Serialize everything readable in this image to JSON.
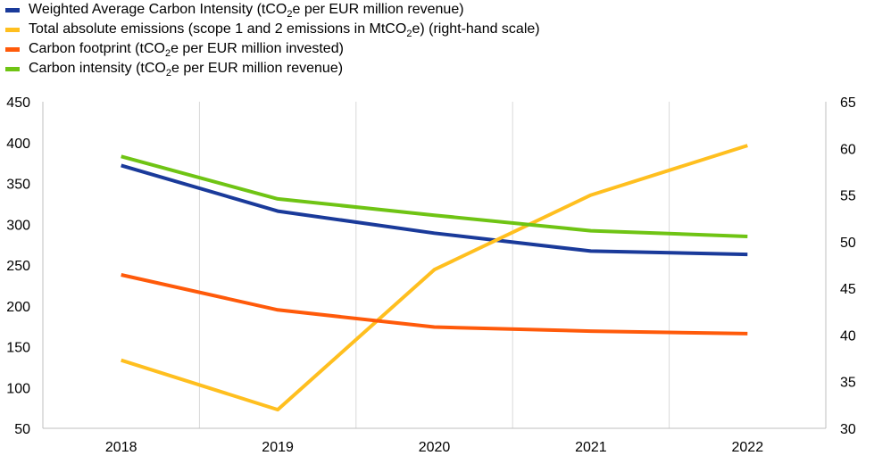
{
  "chart_data": {
    "type": "line",
    "categories": [
      "2018",
      "2019",
      "2020",
      "2021",
      "2022"
    ],
    "ylim": [
      50,
      450
    ],
    "y2lim": [
      30,
      65
    ],
    "y_ticks": [
      "450",
      "400",
      "350",
      "300",
      "250",
      "200",
      "150",
      "100",
      "50"
    ],
    "y2_ticks": [
      "65",
      "60",
      "55",
      "50",
      "45",
      "40",
      "35",
      "30"
    ],
    "grid": "vertical",
    "legend_position": "top-left",
    "series": [
      {
        "name_parts": [
          "Weighted Average Carbon Intensity (tCO",
          "2",
          "e per EUR million revenue)"
        ],
        "color": "#1a3a9a",
        "axis": "left",
        "values": [
          372,
          316,
          289,
          267,
          263
        ]
      },
      {
        "name_parts": [
          "Total absolute emissions (scope 1 and 2 emissions in MtCO",
          "2",
          "e) (right-hand scale)"
        ],
        "color": "#ffbf1f",
        "axis": "right",
        "values": [
          37.3,
          32.0,
          47.0,
          55.0,
          60.3
        ]
      },
      {
        "name_parts": [
          "Carbon footprint (tCO",
          "2",
          "e per EUR million invested)"
        ],
        "color": "#ff5a0a",
        "axis": "left",
        "values": [
          238,
          195,
          174,
          169,
          166
        ]
      },
      {
        "name_parts": [
          "Carbon intensity (tCO",
          "2",
          "e per EUR million revenue)"
        ],
        "color": "#6fc414",
        "axis": "left",
        "values": [
          383,
          331,
          311,
          292,
          285
        ]
      }
    ]
  }
}
